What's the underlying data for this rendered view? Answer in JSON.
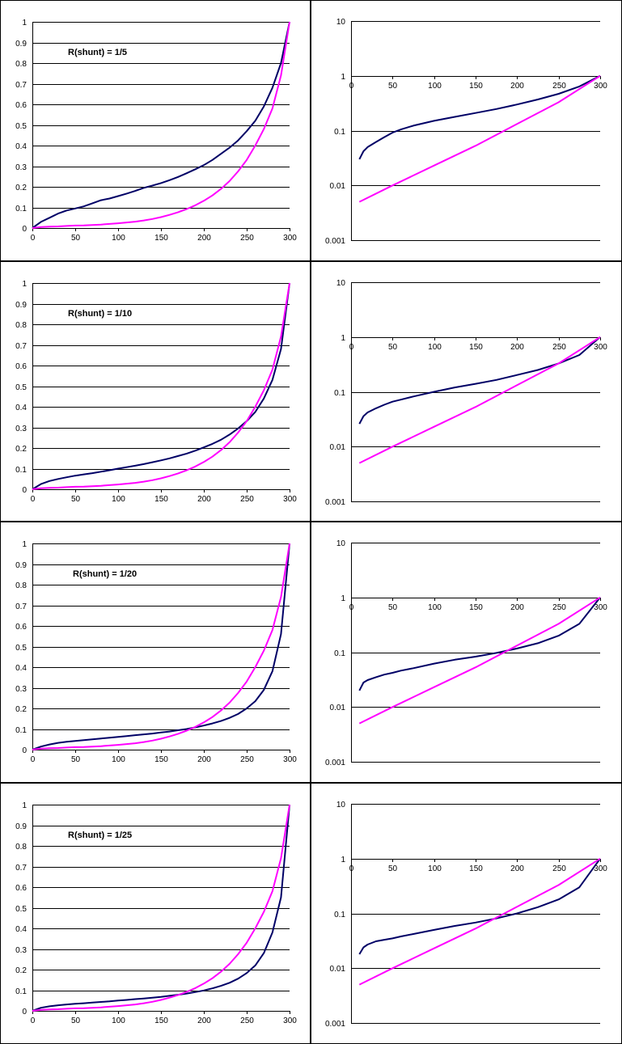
{
  "colors": {
    "series_a": "#000066",
    "series_b": "#FF00FF",
    "grid": "#000000",
    "border": "#000000"
  },
  "chart_data": [
    {
      "type": "line",
      "annotation": "R(shunt) = 1/5",
      "xlim": [
        0,
        300
      ],
      "ylim": [
        0,
        1
      ],
      "yscale": "linear",
      "grid": true,
      "legend": "none",
      "xticks": [
        "0",
        "50",
        "100",
        "150",
        "200",
        "250",
        "300"
      ],
      "yticks": [
        "0",
        "0.1",
        "0.2",
        "0.3",
        "0.4",
        "0.5",
        "0.6",
        "0.7",
        "0.8",
        "0.9",
        "1"
      ],
      "series": [
        {
          "x": [
            0,
            10,
            20,
            30,
            40,
            50,
            60,
            70,
            80,
            90,
            100,
            110,
            120,
            130,
            140,
            150,
            160,
            170,
            180,
            190,
            200,
            210,
            220,
            230,
            240,
            250,
            260,
            270,
            280,
            290,
            300
          ],
          "values": [
            0,
            0.03,
            0.05,
            0.07,
            0.085,
            0.095,
            0.105,
            0.12,
            0.135,
            0.143,
            0.155,
            0.167,
            0.18,
            0.195,
            0.206,
            0.218,
            0.232,
            0.248,
            0.266,
            0.285,
            0.305,
            0.33,
            0.36,
            0.39,
            0.425,
            0.47,
            0.52,
            0.59,
            0.68,
            0.8,
            1.0
          ]
        },
        {
          "x": [
            0,
            10,
            20,
            30,
            40,
            50,
            60,
            70,
            80,
            90,
            100,
            110,
            120,
            130,
            140,
            150,
            160,
            170,
            180,
            190,
            200,
            210,
            220,
            230,
            240,
            250,
            260,
            270,
            280,
            290,
            300
          ],
          "values": [
            0,
            0.005,
            0.007,
            0.008,
            0.01,
            0.012,
            0.013,
            0.015,
            0.017,
            0.02,
            0.023,
            0.027,
            0.031,
            0.037,
            0.044,
            0.053,
            0.064,
            0.077,
            0.092,
            0.11,
            0.132,
            0.158,
            0.19,
            0.228,
            0.275,
            0.33,
            0.4,
            0.48,
            0.58,
            0.74,
            1.0
          ]
        }
      ]
    },
    {
      "type": "line",
      "xlim": [
        0,
        300
      ],
      "ylim": [
        0.001,
        10
      ],
      "yscale": "log",
      "grid": true,
      "legend": "none",
      "xticks": [
        "0",
        "50",
        "100",
        "150",
        "200",
        "250",
        "300"
      ],
      "yticks": [
        "0.001",
        "0.01",
        "0.1",
        "1",
        "10"
      ],
      "series": [
        {
          "x": [
            10,
            15,
            20,
            30,
            40,
            50,
            60,
            75,
            100,
            125,
            150,
            175,
            200,
            225,
            250,
            275,
            300
          ],
          "values": [
            0.03,
            0.042,
            0.05,
            0.062,
            0.076,
            0.092,
            0.105,
            0.123,
            0.151,
            0.178,
            0.21,
            0.248,
            0.3,
            0.37,
            0.47,
            0.64,
            1.0
          ]
        },
        {
          "x": [
            10,
            50,
            100,
            150,
            200,
            250,
            300
          ],
          "values": [
            0.005,
            0.01,
            0.023,
            0.053,
            0.132,
            0.33,
            1.0
          ]
        }
      ]
    },
    {
      "type": "line",
      "annotation": "R(shunt) = 1/10",
      "xlim": [
        0,
        300
      ],
      "ylim": [
        0,
        1
      ],
      "yscale": "linear",
      "grid": true,
      "legend": "none",
      "xticks": [
        "0",
        "50",
        "100",
        "150",
        "200",
        "250",
        "300"
      ],
      "yticks": [
        "0",
        "0.1",
        "0.2",
        "0.3",
        "0.4",
        "0.5",
        "0.6",
        "0.7",
        "0.8",
        "0.9",
        "1"
      ],
      "series": [
        {
          "x": [
            0,
            10,
            20,
            30,
            40,
            50,
            60,
            70,
            80,
            90,
            100,
            110,
            120,
            130,
            140,
            150,
            160,
            170,
            180,
            190,
            200,
            210,
            220,
            230,
            240,
            250,
            260,
            270,
            280,
            290,
            300
          ],
          "values": [
            0,
            0.025,
            0.04,
            0.05,
            0.058,
            0.066,
            0.072,
            0.078,
            0.085,
            0.092,
            0.1,
            0.107,
            0.114,
            0.122,
            0.131,
            0.14,
            0.15,
            0.161,
            0.173,
            0.187,
            0.203,
            0.22,
            0.24,
            0.265,
            0.295,
            0.33,
            0.375,
            0.44,
            0.53,
            0.68,
            1.0
          ]
        },
        {
          "x": [
            0,
            10,
            20,
            30,
            40,
            50,
            60,
            70,
            80,
            90,
            100,
            110,
            120,
            130,
            140,
            150,
            160,
            170,
            180,
            190,
            200,
            210,
            220,
            230,
            240,
            250,
            260,
            270,
            280,
            290,
            300
          ],
          "values": [
            0,
            0.005,
            0.007,
            0.008,
            0.01,
            0.012,
            0.013,
            0.015,
            0.017,
            0.02,
            0.023,
            0.027,
            0.031,
            0.037,
            0.044,
            0.053,
            0.064,
            0.077,
            0.092,
            0.11,
            0.132,
            0.158,
            0.19,
            0.228,
            0.275,
            0.33,
            0.4,
            0.48,
            0.58,
            0.74,
            1.0
          ]
        }
      ]
    },
    {
      "type": "line",
      "xlim": [
        0,
        300
      ],
      "ylim": [
        0.001,
        10
      ],
      "yscale": "log",
      "grid": true,
      "legend": "none",
      "xticks": [
        "0",
        "50",
        "100",
        "150",
        "200",
        "250",
        "300"
      ],
      "yticks": [
        "0.001",
        "0.01",
        "0.1",
        "1",
        "10"
      ],
      "series": [
        {
          "x": [
            10,
            15,
            20,
            30,
            40,
            50,
            60,
            75,
            100,
            125,
            150,
            175,
            200,
            225,
            250,
            275,
            300
          ],
          "values": [
            0.026,
            0.036,
            0.042,
            0.05,
            0.058,
            0.066,
            0.072,
            0.082,
            0.1,
            0.12,
            0.14,
            0.165,
            0.203,
            0.25,
            0.33,
            0.47,
            1.0
          ]
        },
        {
          "x": [
            10,
            50,
            100,
            150,
            200,
            250,
            300
          ],
          "values": [
            0.005,
            0.01,
            0.023,
            0.053,
            0.132,
            0.33,
            1.0
          ]
        }
      ]
    },
    {
      "type": "line",
      "annotation": "R(shunt) = 1/20",
      "xlim": [
        0,
        300
      ],
      "ylim": [
        0,
        1
      ],
      "yscale": "linear",
      "grid": true,
      "legend": "none",
      "xticks": [
        "0",
        "50",
        "100",
        "150",
        "200",
        "250",
        "300"
      ],
      "yticks": [
        "0",
        "0.1",
        "0.2",
        "0.3",
        "0.4",
        "0.5",
        "0.6",
        "0.7",
        "0.8",
        "0.9",
        "1"
      ],
      "series": [
        {
          "x": [
            0,
            10,
            20,
            30,
            40,
            50,
            60,
            70,
            80,
            90,
            100,
            110,
            120,
            130,
            140,
            150,
            160,
            170,
            180,
            190,
            200,
            210,
            220,
            230,
            240,
            250,
            260,
            270,
            280,
            290,
            300
          ],
          "values": [
            0,
            0.015,
            0.025,
            0.033,
            0.038,
            0.042,
            0.046,
            0.05,
            0.054,
            0.058,
            0.062,
            0.066,
            0.07,
            0.074,
            0.078,
            0.083,
            0.088,
            0.094,
            0.1,
            0.108,
            0.117,
            0.127,
            0.139,
            0.154,
            0.173,
            0.2,
            0.235,
            0.29,
            0.38,
            0.56,
            1.0
          ]
        },
        {
          "x": [
            0,
            10,
            20,
            30,
            40,
            50,
            60,
            70,
            80,
            90,
            100,
            110,
            120,
            130,
            140,
            150,
            160,
            170,
            180,
            190,
            200,
            210,
            220,
            230,
            240,
            250,
            260,
            270,
            280,
            290,
            300
          ],
          "values": [
            0,
            0.005,
            0.007,
            0.008,
            0.01,
            0.012,
            0.013,
            0.015,
            0.017,
            0.02,
            0.023,
            0.027,
            0.031,
            0.037,
            0.044,
            0.053,
            0.064,
            0.077,
            0.092,
            0.11,
            0.132,
            0.158,
            0.19,
            0.228,
            0.275,
            0.33,
            0.4,
            0.48,
            0.58,
            0.74,
            1.0
          ]
        }
      ]
    },
    {
      "type": "line",
      "xlim": [
        0,
        300
      ],
      "ylim": [
        0.001,
        10
      ],
      "yscale": "log",
      "grid": true,
      "legend": "none",
      "xticks": [
        "0",
        "50",
        "100",
        "150",
        "200",
        "250",
        "300"
      ],
      "yticks": [
        "0.001",
        "0.01",
        "0.1",
        "1",
        "10"
      ],
      "series": [
        {
          "x": [
            10,
            15,
            20,
            30,
            40,
            50,
            60,
            75,
            100,
            125,
            150,
            175,
            200,
            225,
            250,
            275,
            300
          ],
          "values": [
            0.02,
            0.028,
            0.031,
            0.035,
            0.039,
            0.042,
            0.046,
            0.051,
            0.062,
            0.073,
            0.083,
            0.097,
            0.117,
            0.146,
            0.2,
            0.33,
            1.0
          ]
        },
        {
          "x": [
            10,
            50,
            100,
            150,
            200,
            250,
            300
          ],
          "values": [
            0.005,
            0.01,
            0.023,
            0.053,
            0.132,
            0.33,
            1.0
          ]
        }
      ]
    },
    {
      "type": "line",
      "annotation": "R(shunt) = 1/25",
      "xlim": [
        0,
        300
      ],
      "ylim": [
        0,
        1
      ],
      "yscale": "linear",
      "grid": true,
      "legend": "none",
      "xticks": [
        "0",
        "50",
        "100",
        "150",
        "200",
        "250",
        "300"
      ],
      "yticks": [
        "0",
        "0.1",
        "0.2",
        "0.3",
        "0.4",
        "0.5",
        "0.6",
        "0.7",
        "0.8",
        "0.9",
        "1"
      ],
      "series": [
        {
          "x": [
            0,
            10,
            20,
            30,
            40,
            50,
            60,
            70,
            80,
            90,
            100,
            110,
            120,
            130,
            140,
            150,
            160,
            170,
            180,
            190,
            200,
            210,
            220,
            230,
            240,
            250,
            260,
            270,
            280,
            290,
            300
          ],
          "values": [
            0,
            0.015,
            0.022,
            0.027,
            0.031,
            0.034,
            0.037,
            0.04,
            0.043,
            0.046,
            0.05,
            0.053,
            0.057,
            0.06,
            0.064,
            0.068,
            0.073,
            0.078,
            0.084,
            0.091,
            0.099,
            0.109,
            0.121,
            0.136,
            0.156,
            0.183,
            0.22,
            0.28,
            0.38,
            0.55,
            1.0
          ]
        },
        {
          "x": [
            0,
            10,
            20,
            30,
            40,
            50,
            60,
            70,
            80,
            90,
            100,
            110,
            120,
            130,
            140,
            150,
            160,
            170,
            180,
            190,
            200,
            210,
            220,
            230,
            240,
            250,
            260,
            270,
            280,
            290,
            300
          ],
          "values": [
            0,
            0.005,
            0.007,
            0.008,
            0.01,
            0.012,
            0.013,
            0.015,
            0.017,
            0.02,
            0.023,
            0.027,
            0.031,
            0.037,
            0.044,
            0.053,
            0.064,
            0.077,
            0.092,
            0.11,
            0.132,
            0.158,
            0.19,
            0.228,
            0.275,
            0.33,
            0.4,
            0.48,
            0.58,
            0.74,
            1.0
          ]
        }
      ]
    },
    {
      "type": "line",
      "xlim": [
        0,
        300
      ],
      "ylim": [
        0.001,
        10
      ],
      "yscale": "log",
      "grid": true,
      "legend": "none",
      "xticks": [
        "0",
        "50",
        "100",
        "150",
        "200",
        "250",
        "300"
      ],
      "yticks": [
        "0.001",
        "0.01",
        "0.1",
        "1",
        "10"
      ],
      "series": [
        {
          "x": [
            10,
            15,
            20,
            30,
            40,
            50,
            60,
            75,
            100,
            125,
            150,
            175,
            200,
            225,
            250,
            275,
            300
          ],
          "values": [
            0.018,
            0.024,
            0.027,
            0.031,
            0.033,
            0.035,
            0.038,
            0.042,
            0.05,
            0.059,
            0.068,
            0.081,
            0.1,
            0.13,
            0.18,
            0.3,
            1.0
          ]
        },
        {
          "x": [
            10,
            50,
            100,
            150,
            200,
            250,
            300
          ],
          "values": [
            0.005,
            0.01,
            0.023,
            0.053,
            0.132,
            0.33,
            1.0
          ]
        }
      ]
    }
  ]
}
